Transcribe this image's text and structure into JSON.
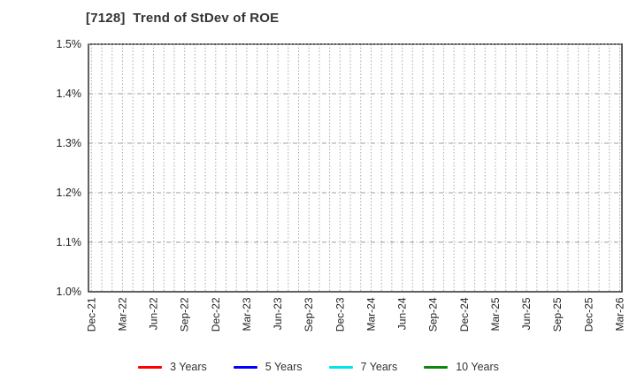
{
  "title": "[7128]  Trend of StDev of ROE",
  "chart_data": {
    "type": "line",
    "title": "[7128]  Trend of StDev of ROE",
    "xlabel": "",
    "ylabel": "",
    "x_tick_labels": [
      "Dec-21",
      "Mar-22",
      "Jun-22",
      "Sep-22",
      "Dec-22",
      "Mar-23",
      "Jun-23",
      "Sep-23",
      "Dec-23",
      "Mar-24",
      "Jun-24",
      "Sep-24",
      "Dec-24",
      "Mar-25",
      "Jun-25",
      "Sep-25",
      "Dec-25",
      "Mar-26"
    ],
    "months_between_labeled_ticks": 3,
    "y_tick_labels": [
      "1.0%",
      "1.1%",
      "1.2%",
      "1.3%",
      "1.4%",
      "1.5%"
    ],
    "ylim": [
      1.0,
      1.5
    ],
    "grid": true,
    "legend_position": "bottom",
    "series": [
      {
        "name": "3 Years",
        "color": "#ff0000",
        "values": []
      },
      {
        "name": "5 Years",
        "color": "#0000ff",
        "values": []
      },
      {
        "name": "7 Years",
        "color": "#00e5e5",
        "values": []
      },
      {
        "name": "10 Years",
        "color": "#0e870e",
        "values": []
      }
    ]
  },
  "theme": {
    "frame_color": "#2e2e2e",
    "grid_color_v": "#a8a8a8",
    "grid_color_h": "#9f9f9f",
    "tick_text_color": "#222222",
    "background": "#ffffff"
  }
}
